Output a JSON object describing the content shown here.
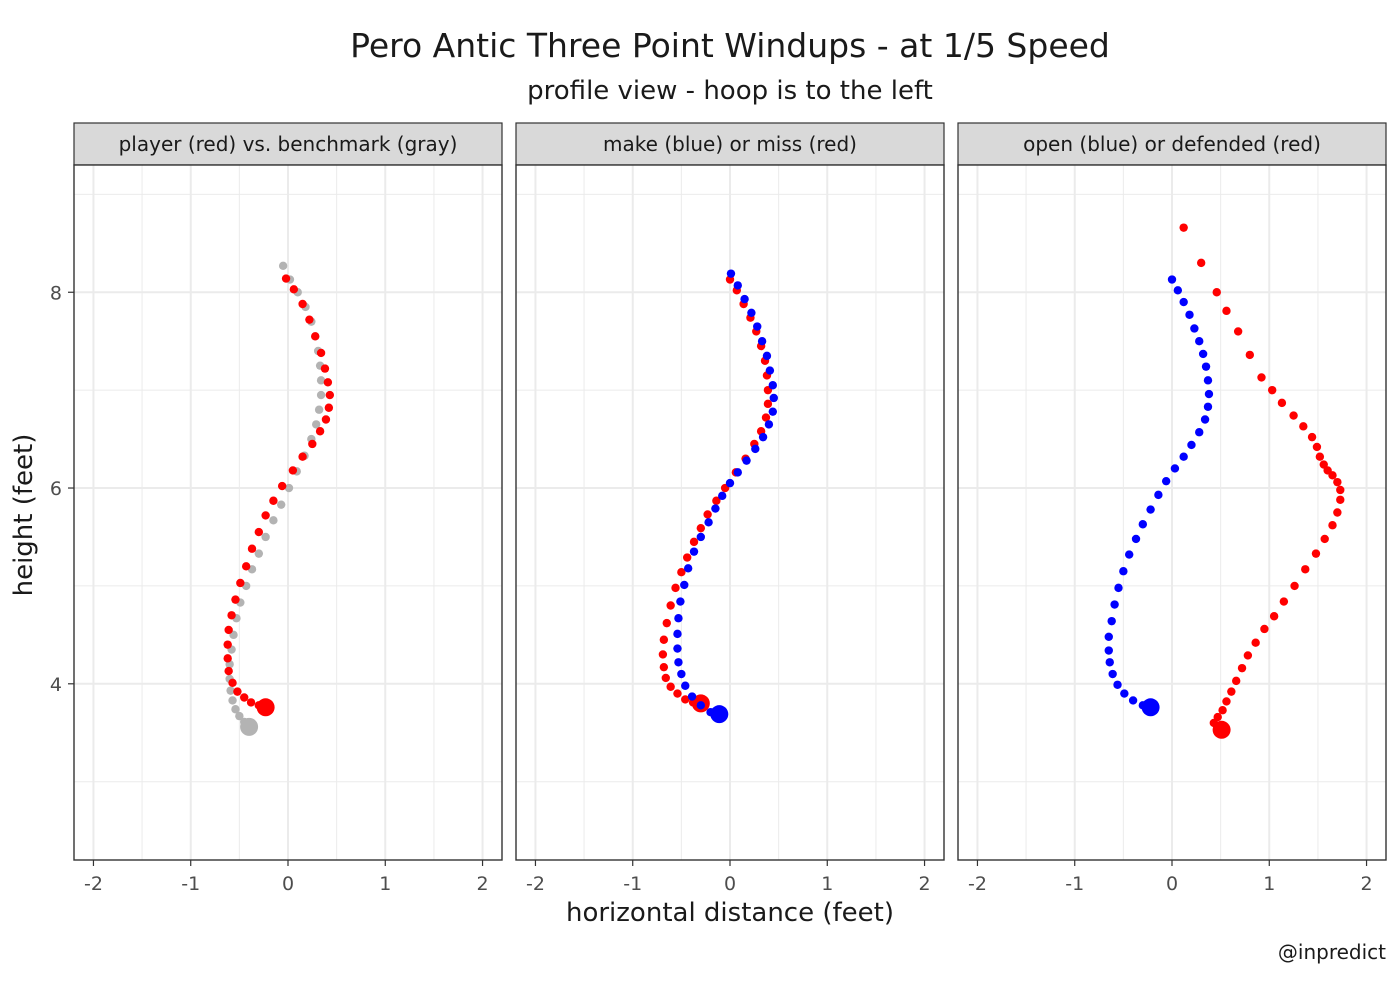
{
  "chart_data": {
    "type": "scatter",
    "title": "Pero Antic Three Point Windups - at 1/5 Speed",
    "subtitle": "profile view - hoop is to the left",
    "xlabel": "horizontal distance (feet)",
    "ylabel": "height (feet)",
    "caption": "@inpredict",
    "xlim": [
      -2.2,
      2.2
    ],
    "ylim": [
      2.2,
      9.3
    ],
    "x_ticks": [
      -2,
      -1,
      0,
      1,
      2
    ],
    "y_ticks": [
      4,
      6,
      8
    ],
    "grid": true,
    "colors": {
      "red": "#ff0000",
      "gray": "#b3b3b3",
      "blue": "#0000ff",
      "strip": "#d9d9d9"
    },
    "panels": [
      {
        "strip": "player (red) vs. benchmark (gray)",
        "series": [
          {
            "color": "gray",
            "points": [
              [
                -0.05,
                8.27
              ],
              [
                0.02,
                8.13
              ],
              [
                0.1,
                8.0
              ],
              [
                0.18,
                7.85
              ],
              [
                0.24,
                7.7
              ],
              [
                0.28,
                7.55
              ],
              [
                0.31,
                7.4
              ],
              [
                0.33,
                7.25
              ],
              [
                0.34,
                7.1
              ],
              [
                0.34,
                6.95
              ],
              [
                0.32,
                6.8
              ],
              [
                0.29,
                6.65
              ],
              [
                0.24,
                6.5
              ],
              [
                0.17,
                6.33
              ],
              [
                0.09,
                6.17
              ],
              [
                0.01,
                6.0
              ],
              [
                -0.07,
                5.83
              ],
              [
                -0.15,
                5.67
              ],
              [
                -0.23,
                5.5
              ],
              [
                -0.3,
                5.33
              ],
              [
                -0.37,
                5.17
              ],
              [
                -0.43,
                5.0
              ],
              [
                -0.49,
                4.83
              ],
              [
                -0.53,
                4.67
              ],
              [
                -0.56,
                4.5
              ],
              [
                -0.58,
                4.35
              ],
              [
                -0.6,
                4.2
              ],
              [
                -0.6,
                4.05
              ],
              [
                -0.59,
                3.93
              ],
              [
                -0.57,
                3.83
              ],
              [
                -0.54,
                3.74
              ],
              [
                -0.5,
                3.67
              ],
              [
                -0.45,
                3.61
              ],
              [
                -0.4,
                3.56
              ]
            ]
          },
          {
            "color": "red",
            "points": [
              [
                -0.02,
                8.14
              ],
              [
                0.06,
                8.03
              ],
              [
                0.15,
                7.88
              ],
              [
                0.22,
                7.72
              ],
              [
                0.28,
                7.55
              ],
              [
                0.34,
                7.38
              ],
              [
                0.38,
                7.22
              ],
              [
                0.41,
                7.08
              ],
              [
                0.43,
                6.95
              ],
              [
                0.42,
                6.82
              ],
              [
                0.39,
                6.7
              ],
              [
                0.33,
                6.58
              ],
              [
                0.25,
                6.45
              ],
              [
                0.15,
                6.32
              ],
              [
                0.05,
                6.18
              ],
              [
                -0.06,
                6.02
              ],
              [
                -0.15,
                5.87
              ],
              [
                -0.23,
                5.72
              ],
              [
                -0.3,
                5.55
              ],
              [
                -0.37,
                5.38
              ],
              [
                -0.43,
                5.2
              ],
              [
                -0.49,
                5.03
              ],
              [
                -0.54,
                4.86
              ],
              [
                -0.58,
                4.7
              ],
              [
                -0.61,
                4.55
              ],
              [
                -0.62,
                4.4
              ],
              [
                -0.62,
                4.26
              ],
              [
                -0.61,
                4.13
              ],
              [
                -0.57,
                4.01
              ],
              [
                -0.52,
                3.92
              ],
              [
                -0.45,
                3.86
              ],
              [
                -0.38,
                3.81
              ],
              [
                -0.3,
                3.78
              ],
              [
                -0.23,
                3.76
              ]
            ]
          }
        ]
      },
      {
        "strip": "make (blue) or miss (red)",
        "series": [
          {
            "color": "red",
            "points": [
              [
                0.0,
                8.13
              ],
              [
                0.07,
                8.02
              ],
              [
                0.14,
                7.88
              ],
              [
                0.21,
                7.74
              ],
              [
                0.27,
                7.6
              ],
              [
                0.32,
                7.45
              ],
              [
                0.36,
                7.3
              ],
              [
                0.38,
                7.15
              ],
              [
                0.39,
                7.0
              ],
              [
                0.39,
                6.86
              ],
              [
                0.37,
                6.72
              ],
              [
                0.32,
                6.58
              ],
              [
                0.25,
                6.45
              ],
              [
                0.16,
                6.3
              ],
              [
                0.06,
                6.16
              ],
              [
                -0.05,
                6.0
              ],
              [
                -0.14,
                5.87
              ],
              [
                -0.23,
                5.73
              ],
              [
                -0.3,
                5.59
              ],
              [
                -0.37,
                5.45
              ],
              [
                -0.44,
                5.29
              ],
              [
                -0.5,
                5.14
              ],
              [
                -0.56,
                4.98
              ],
              [
                -0.61,
                4.8
              ],
              [
                -0.65,
                4.62
              ],
              [
                -0.68,
                4.45
              ],
              [
                -0.69,
                4.3
              ],
              [
                -0.68,
                4.17
              ],
              [
                -0.66,
                4.06
              ],
              [
                -0.61,
                3.97
              ],
              [
                -0.54,
                3.9
              ],
              [
                -0.46,
                3.84
              ],
              [
                -0.38,
                3.81
              ],
              [
                -0.3,
                3.8
              ]
            ]
          },
          {
            "color": "blue",
            "points": [
              [
                0.01,
                8.19
              ],
              [
                0.08,
                8.07
              ],
              [
                0.15,
                7.93
              ],
              [
                0.22,
                7.79
              ],
              [
                0.28,
                7.65
              ],
              [
                0.33,
                7.5
              ],
              [
                0.38,
                7.35
              ],
              [
                0.41,
                7.2
              ],
              [
                0.44,
                7.05
              ],
              [
                0.45,
                6.92
              ],
              [
                0.44,
                6.78
              ],
              [
                0.4,
                6.65
              ],
              [
                0.34,
                6.52
              ],
              [
                0.26,
                6.4
              ],
              [
                0.17,
                6.28
              ],
              [
                0.08,
                6.16
              ],
              [
                0.0,
                6.05
              ],
              [
                -0.08,
                5.92
              ],
              [
                -0.15,
                5.79
              ],
              [
                -0.22,
                5.65
              ],
              [
                -0.3,
                5.5
              ],
              [
                -0.37,
                5.35
              ],
              [
                -0.43,
                5.18
              ],
              [
                -0.47,
                5.01
              ],
              [
                -0.51,
                4.84
              ],
              [
                -0.53,
                4.67
              ],
              [
                -0.54,
                4.51
              ],
              [
                -0.54,
                4.36
              ],
              [
                -0.53,
                4.22
              ],
              [
                -0.5,
                4.1
              ],
              [
                -0.46,
                3.98
              ],
              [
                -0.39,
                3.87
              ],
              [
                -0.3,
                3.78
              ],
              [
                -0.2,
                3.71
              ],
              [
                -0.11,
                3.69
              ]
            ]
          }
        ]
      },
      {
        "strip": "open (blue) or defended (red)",
        "series": [
          {
            "color": "red",
            "points": [
              [
                0.12,
                8.66
              ],
              [
                0.3,
                8.3
              ],
              [
                0.46,
                8.0
              ],
              [
                0.56,
                7.81
              ],
              [
                0.68,
                7.6
              ],
              [
                0.8,
                7.36
              ],
              [
                0.92,
                7.13
              ],
              [
                1.03,
                7.0
              ],
              [
                1.13,
                6.87
              ],
              [
                1.25,
                6.74
              ],
              [
                1.35,
                6.63
              ],
              [
                1.44,
                6.52
              ],
              [
                1.49,
                6.42
              ],
              [
                1.52,
                6.32
              ],
              [
                1.56,
                6.24
              ],
              [
                1.6,
                6.18
              ],
              [
                1.65,
                6.13
              ],
              [
                1.7,
                6.06
              ],
              [
                1.73,
                5.98
              ],
              [
                1.73,
                5.88
              ],
              [
                1.7,
                5.75
              ],
              [
                1.65,
                5.62
              ],
              [
                1.57,
                5.48
              ],
              [
                1.48,
                5.33
              ],
              [
                1.37,
                5.17
              ],
              [
                1.26,
                5.0
              ],
              [
                1.15,
                4.84
              ],
              [
                1.05,
                4.69
              ],
              [
                0.95,
                4.56
              ],
              [
                0.86,
                4.42
              ],
              [
                0.78,
                4.29
              ],
              [
                0.72,
                4.16
              ],
              [
                0.66,
                4.03
              ],
              [
                0.61,
                3.92
              ],
              [
                0.56,
                3.82
              ],
              [
                0.52,
                3.73
              ],
              [
                0.47,
                3.66
              ],
              [
                0.43,
                3.6
              ],
              [
                0.51,
                3.53
              ]
            ]
          },
          {
            "color": "blue",
            "points": [
              [
                0.0,
                8.13
              ],
              [
                0.06,
                8.02
              ],
              [
                0.12,
                7.9
              ],
              [
                0.18,
                7.77
              ],
              [
                0.23,
                7.63
              ],
              [
                0.28,
                7.5
              ],
              [
                0.32,
                7.37
              ],
              [
                0.35,
                7.24
              ],
              [
                0.37,
                7.1
              ],
              [
                0.38,
                6.96
              ],
              [
                0.37,
                6.83
              ],
              [
                0.34,
                6.7
              ],
              [
                0.28,
                6.57
              ],
              [
                0.2,
                6.44
              ],
              [
                0.12,
                6.32
              ],
              [
                0.03,
                6.2
              ],
              [
                -0.06,
                6.07
              ],
              [
                -0.14,
                5.93
              ],
              [
                -0.22,
                5.78
              ],
              [
                -0.3,
                5.63
              ],
              [
                -0.37,
                5.48
              ],
              [
                -0.44,
                5.32
              ],
              [
                -0.5,
                5.15
              ],
              [
                -0.55,
                4.98
              ],
              [
                -0.59,
                4.81
              ],
              [
                -0.62,
                4.64
              ],
              [
                -0.65,
                4.48
              ],
              [
                -0.65,
                4.34
              ],
              [
                -0.64,
                4.22
              ],
              [
                -0.61,
                4.1
              ],
              [
                -0.56,
                3.99
              ],
              [
                -0.49,
                3.9
              ],
              [
                -0.4,
                3.83
              ],
              [
                -0.3,
                3.78
              ],
              [
                -0.22,
                3.76
              ]
            ]
          }
        ]
      }
    ]
  }
}
